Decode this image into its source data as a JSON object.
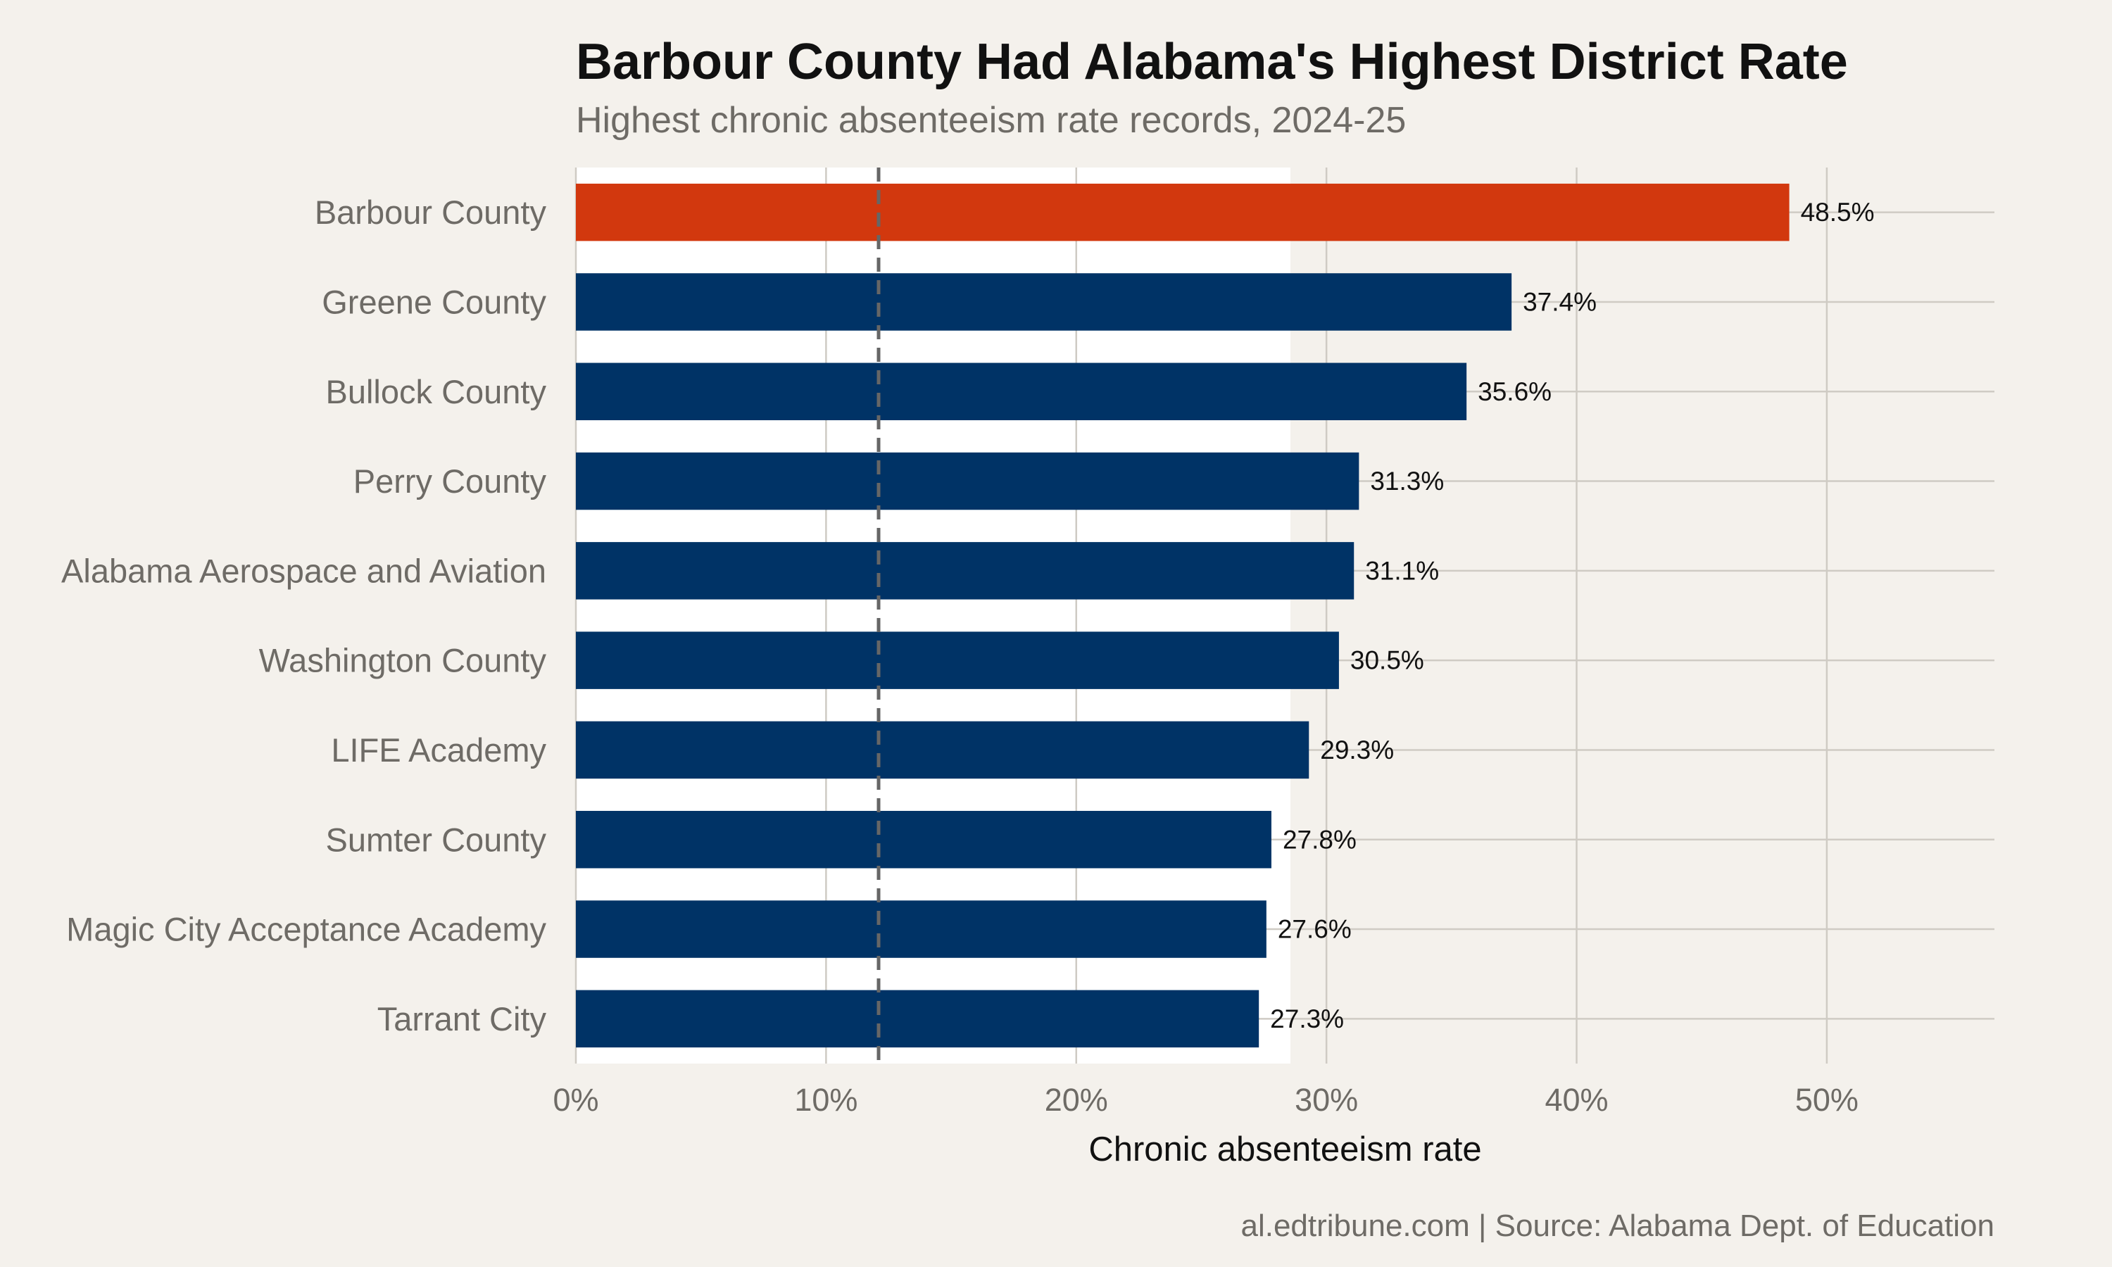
{
  "title": "Barbour County Had Alabama's Highest District Rate",
  "subtitle": "Highest chronic absenteeism rate records, 2024-25",
  "caption": "al.edtribune.com | Source: Alabama Dept. of Education",
  "colors": {
    "page_background": "#f4f1ec",
    "panel_background": "#ffffff",
    "highlight_bar": "#d2380e",
    "default_bar": "#003366",
    "gridline": "#cfcbc4",
    "reference_line": "#666666",
    "tick_label": "#6e6b66",
    "axis_title": "#111111",
    "value_label": "#111111"
  },
  "chart_data": {
    "type": "bar",
    "orientation": "horizontal",
    "categories": [
      "Barbour County",
      "Greene County",
      "Bullock County",
      "Perry County",
      "Alabama Aerospace and Aviation",
      "Washington County",
      "LIFE Academy",
      "Sumter County",
      "Magic City Acceptance Academy",
      "Tarrant City"
    ],
    "values": [
      48.5,
      37.4,
      35.6,
      31.3,
      31.1,
      30.5,
      29.3,
      27.8,
      27.6,
      27.3
    ],
    "value_labels": [
      "48.5%",
      "37.4%",
      "35.6%",
      "31.3%",
      "31.1%",
      "30.5%",
      "29.3%",
      "27.8%",
      "27.6%",
      "27.3%"
    ],
    "highlight_category": "Barbour County",
    "xlabel": "Chronic absenteeism rate",
    "ylabel": "",
    "xlim": [
      0,
      56.7
    ],
    "x_ticks": [
      0,
      10,
      20,
      30,
      40,
      50
    ],
    "x_tick_labels": [
      "0%",
      "10%",
      "20%",
      "30%",
      "40%",
      "50%"
    ],
    "reference_line": {
      "value": 12.1,
      "style": "dashed"
    },
    "grid": true,
    "legend": "none"
  }
}
